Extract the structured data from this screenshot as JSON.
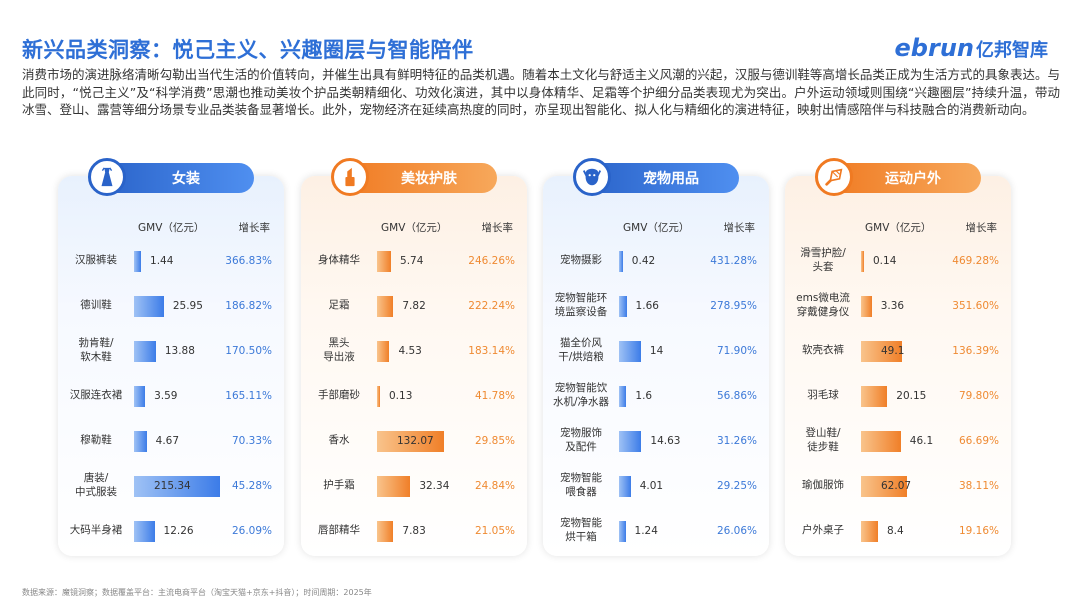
{
  "title": "新兴品类洞察：悦己主义、兴趣圈层与智能陪伴",
  "logo": {
    "en": "ebrun",
    "cn": "亿邦智库"
  },
  "intro": "消费市场的演进脉络清晰勾勒出当代生活的价值转向，并催生出具有鲜明特征的品类机遇。随着本土文化与舒适主义风潮的兴起，汉服与德训鞋等高增长品类正成为生活方式的具象表达。与此同时，“悦己主义”及“科学消费”思潮也推动美妆个护品类朝精细化、功效化演进，其中以身体精华、足霜等个护细分品类表现尤为突出。户外运动领域则围绕“兴趣圈层”持续升温，带动冰雪、登山、露营等细分场景专业品类装备显著增长。此外，宠物经济在延续高热度的同时，亦呈现出智能化、拟人化与精细化的演进特征，映射出情感陪伴与科技融合的消费新动向。",
  "column_labels": {
    "gmv": "GMV（亿元）",
    "growth": "增长率"
  },
  "footer": "数据来源：魔镜洞察；数据覆盖平台：主流电商平台（淘宝天猫+京东+抖音）；时间周期：2025年",
  "colors": {
    "blue": "#3c7ce8",
    "orange": "#f07f28",
    "title": "#2e6fd6"
  },
  "chart_data": [
    {
      "type": "bar",
      "title": "女装",
      "icon": "dress-icon",
      "theme": "blue",
      "categories": [
        "汉服裤装",
        "德训鞋",
        "勃肯鞋/软木鞋",
        "汉服连衣裙",
        "穆勒鞋",
        "唐装/中式服装",
        "大码半身裙"
      ],
      "category_lines": [
        [
          "汉服裤装"
        ],
        [
          "德训鞋"
        ],
        [
          "勃肯鞋/",
          "软木鞋"
        ],
        [
          "汉服连衣裙"
        ],
        [
          "穆勒鞋"
        ],
        [
          "唐装/",
          "中式服装"
        ],
        [
          "大码半身裙"
        ]
      ],
      "gmv": [
        1.44,
        25.95,
        13.88,
        3.59,
        4.67,
        215.34,
        12.26
      ],
      "gmv_labels": [
        "1.44",
        "25.95",
        "13.88",
        "3.59",
        "4.67",
        "215.34",
        "12.26"
      ],
      "growth": [
        "366.83%",
        "186.82%",
        "170.50%",
        "165.11%",
        "70.33%",
        "45.28%",
        "26.09%"
      ]
    },
    {
      "type": "bar",
      "title": "美妆护肤",
      "icon": "lipstick-icon",
      "theme": "orange",
      "categories": [
        "身体精华",
        "足霜",
        "黑头导出液",
        "手部磨砂",
        "香水",
        "护手霜",
        "唇部精华"
      ],
      "category_lines": [
        [
          "身体精华"
        ],
        [
          "足霜"
        ],
        [
          "黑头",
          "导出液"
        ],
        [
          "手部磨砂"
        ],
        [
          "香水"
        ],
        [
          "护手霜"
        ],
        [
          "唇部精华"
        ]
      ],
      "gmv": [
        5.74,
        7.82,
        4.53,
        0.13,
        132.07,
        32.34,
        7.83
      ],
      "gmv_labels": [
        "5.74",
        "7.82",
        "4.53",
        "0.13",
        "132.07",
        "32.34",
        "7.83"
      ],
      "growth": [
        "246.26%",
        "222.24%",
        "183.14%",
        "41.78%",
        "29.85%",
        "24.84%",
        "21.05%"
      ]
    },
    {
      "type": "bar",
      "title": "宠物用品",
      "icon": "dog-icon",
      "theme": "blue",
      "categories": [
        "宠物摄影",
        "宠物智能环境监察设备",
        "猫全价风干/烘焙粮",
        "宠物智能饮水机/净水器",
        "宠物服饰及配件",
        "宠物智能喂食器",
        "宠物智能烘干箱"
      ],
      "category_lines": [
        [
          "宠物摄影"
        ],
        [
          "宠物智能环",
          "境监察设备"
        ],
        [
          "猫全价风",
          "干/烘焙粮"
        ],
        [
          "宠物智能饮",
          "水机/净水器"
        ],
        [
          "宠物服饰",
          "及配件"
        ],
        [
          "宠物智能",
          "喂食器"
        ],
        [
          "宠物智能",
          "烘干箱"
        ]
      ],
      "gmv": [
        0.42,
        1.66,
        14,
        1.6,
        14.63,
        4.01,
        1.24
      ],
      "gmv_labels": [
        "0.42",
        "1.66",
        "14",
        "1.6",
        "14.63",
        "4.01",
        "1.24"
      ],
      "growth": [
        "431.28%",
        "278.95%",
        "71.90%",
        "56.86%",
        "31.26%",
        "29.25%",
        "26.06%"
      ]
    },
    {
      "type": "bar",
      "title": "运动户外",
      "icon": "shuttlecock-icon",
      "theme": "orange",
      "categories": [
        "滑雪护脸/头套",
        "ems微电流穿戴健身仪",
        "软壳衣裤",
        "羽毛球",
        "登山鞋/徒步鞋",
        "瑜伽服饰",
        "户外桌子"
      ],
      "category_lines": [
        [
          "滑雪护脸/",
          "头套"
        ],
        [
          "ems微电流",
          "穿戴健身仪"
        ],
        [
          "软壳衣裤"
        ],
        [
          "羽毛球"
        ],
        [
          "登山鞋/",
          "徒步鞋"
        ],
        [
          "瑜伽服饰"
        ],
        [
          "户外桌子"
        ]
      ],
      "gmv": [
        0.14,
        3.36,
        49.1,
        20.15,
        46.1,
        62.07,
        8.4
      ],
      "gmv_labels": [
        "0.14",
        "3.36",
        "49.1",
        "20.15",
        "46.1",
        "62.07",
        "8.4"
      ],
      "growth": [
        "469.28%",
        "351.60%",
        "136.39%",
        "79.80%",
        "66.69%",
        "38.11%",
        "19.16%"
      ]
    }
  ]
}
